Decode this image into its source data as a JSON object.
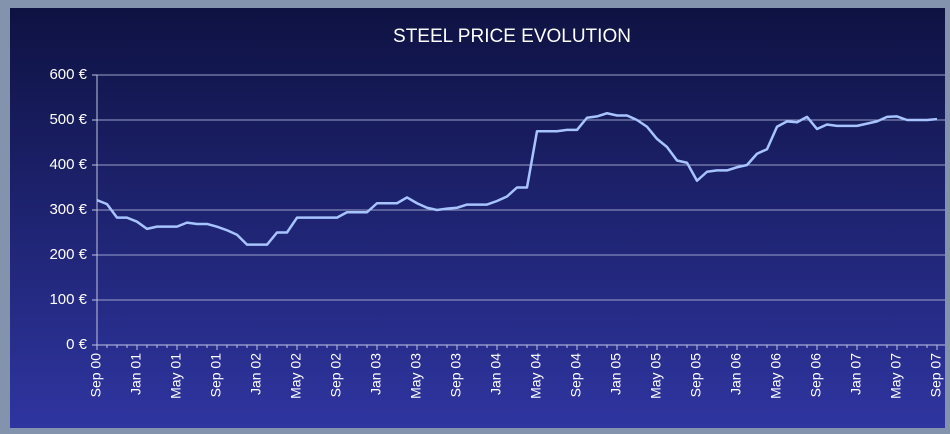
{
  "chart_data": {
    "type": "line",
    "title": "STEEL PRICE EVOLUTION",
    "categories": [
      "Sep 00",
      null,
      null,
      null,
      "Jan 01",
      null,
      null,
      null,
      "May 01",
      null,
      null,
      null,
      "Sep 01",
      null,
      null,
      null,
      "Jan 02",
      null,
      null,
      null,
      "May 02",
      null,
      null,
      null,
      "Sep 02",
      null,
      null,
      null,
      "Jan 03",
      null,
      null,
      null,
      "May 03",
      null,
      null,
      null,
      "Sep 03",
      null,
      null,
      null,
      "Jan 04",
      null,
      null,
      null,
      "May 04",
      null,
      null,
      null,
      "Sep 04",
      null,
      null,
      null,
      "Jan 05",
      null,
      null,
      null,
      "May 05",
      null,
      null,
      null,
      "Sep 05",
      null,
      null,
      null,
      "Jan 06",
      null,
      null,
      null,
      "May 06",
      null,
      null,
      null,
      "Sep 06",
      null,
      null,
      null,
      "Jan 07",
      null,
      null,
      null,
      "May 07",
      null,
      null,
      null,
      "Sep 07"
    ],
    "series": [
      {
        "color": "#a8c4ff",
        "values": [
          322,
          313,
          283,
          283,
          274,
          258,
          263,
          263,
          263,
          272,
          269,
          269,
          263,
          255,
          245,
          223,
          223,
          223,
          250,
          250,
          283,
          283,
          283,
          283,
          283,
          295,
          295,
          295,
          315,
          315,
          315,
          328,
          315,
          305,
          300,
          303,
          305,
          312,
          312,
          312,
          320,
          330,
          350,
          350,
          475,
          475,
          475,
          478,
          478,
          505,
          508,
          515,
          510,
          510,
          500,
          485,
          458,
          440,
          410,
          405,
          365,
          385,
          388,
          388,
          395,
          400,
          425,
          435,
          485,
          497,
          495,
          507,
          480,
          490,
          487,
          487,
          487,
          492,
          497,
          507,
          508,
          500,
          500,
          500,
          502
        ]
      }
    ],
    "ylim": [
      0,
      600
    ],
    "yticks": [
      {
        "value": 0,
        "label": "0 €"
      },
      {
        "value": 100,
        "label": "100 €"
      },
      {
        "value": 200,
        "label": "200 €"
      },
      {
        "value": 300,
        "label": "300 €"
      },
      {
        "value": 400,
        "label": "400 €"
      },
      {
        "value": 500,
        "label": "500 €"
      },
      {
        "value": 600,
        "label": "600 €"
      }
    ],
    "grid": true
  }
}
